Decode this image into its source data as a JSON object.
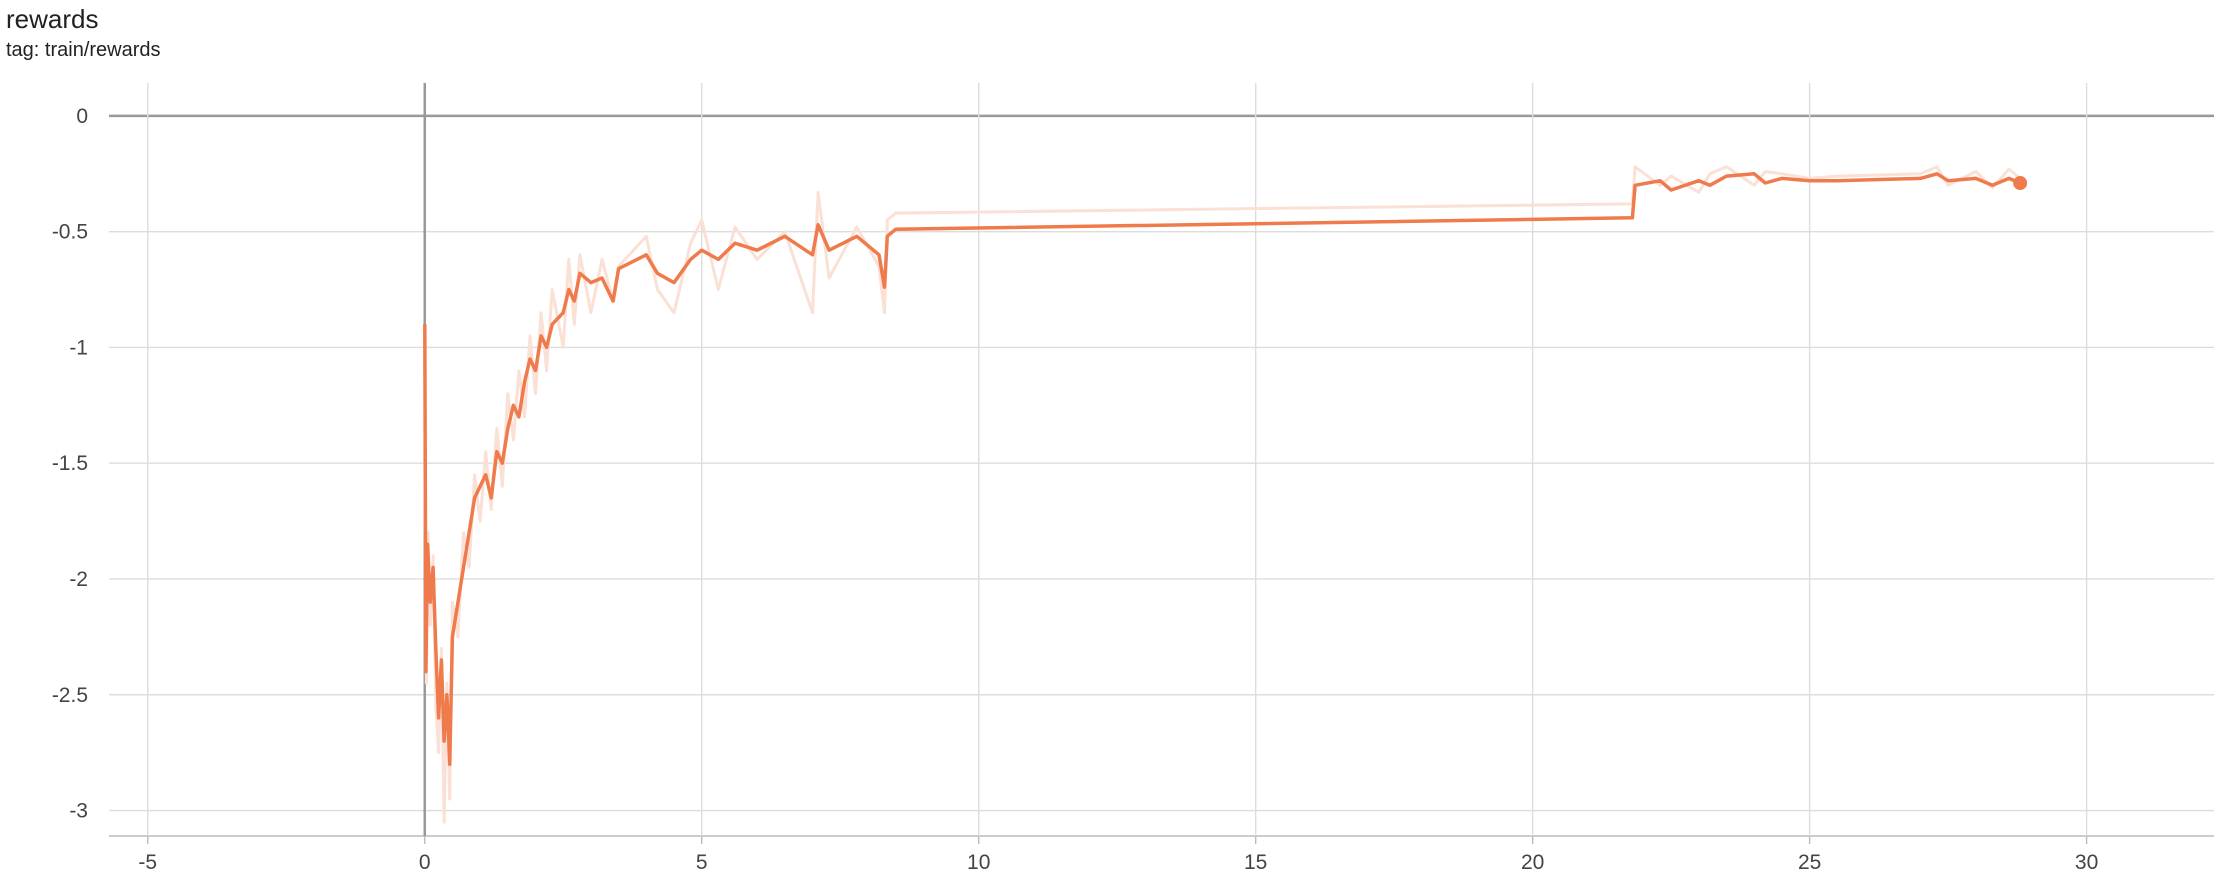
{
  "chart_data": {
    "type": "line",
    "title": "rewards",
    "subtitle": "tag: train/rewards",
    "xlim": [
      -5.7,
      32.3
    ],
    "ylim": [
      0.142,
      -3.11
    ],
    "xticks": [
      -5,
      0,
      5,
      10,
      15,
      20,
      25,
      30
    ],
    "yticks": [
      0,
      -0.5,
      -1,
      -1.5,
      -2,
      -2.5,
      -3
    ],
    "grid": true,
    "series": [
      {
        "color": "#fbe0d5",
        "x": [
          0,
          0.03,
          0.06,
          0.1,
          0.15,
          0.2,
          0.25,
          0.3,
          0.35,
          0.4,
          0.45,
          0.5,
          0.6,
          0.7,
          0.8,
          0.9,
          1.0,
          1.1,
          1.2,
          1.3,
          1.4,
          1.5,
          1.6,
          1.7,
          1.8,
          1.9,
          2.0,
          2.1,
          2.2,
          2.3,
          2.5,
          2.6,
          2.7,
          2.8,
          3.0,
          3.2,
          3.4,
          3.5,
          4.0,
          4.2,
          4.5,
          4.8,
          5.0,
          5.3,
          5.6,
          6.0,
          6.5,
          7.0,
          7.1,
          7.3,
          7.8,
          8.2,
          8.3,
          8.35,
          8.5,
          21.8,
          21.85,
          22.3,
          22.5,
          23.0,
          23.2,
          23.5,
          24.0,
          24.2,
          24.5,
          25.0,
          25.5,
          27.0,
          27.3,
          27.5,
          28.0,
          28.3,
          28.6,
          28.8
        ],
        "values": [
          -1.45,
          -2.45,
          -1.8,
          -2.2,
          -1.9,
          -2.55,
          -2.75,
          -2.3,
          -3.05,
          -2.45,
          -2.95,
          -2.1,
          -2.25,
          -1.8,
          -1.95,
          -1.55,
          -1.75,
          -1.45,
          -1.7,
          -1.35,
          -1.6,
          -1.2,
          -1.4,
          -1.1,
          -1.3,
          -0.95,
          -1.2,
          -0.85,
          -1.1,
          -0.75,
          -1.0,
          -0.62,
          -0.9,
          -0.6,
          -0.85,
          -0.62,
          -0.8,
          -0.65,
          -0.52,
          -0.75,
          -0.85,
          -0.55,
          -0.45,
          -0.75,
          -0.48,
          -0.62,
          -0.5,
          -0.85,
          -0.33,
          -0.7,
          -0.48,
          -0.65,
          -0.85,
          -0.45,
          -0.42,
          -0.38,
          -0.22,
          -0.3,
          -0.26,
          -0.33,
          -0.25,
          -0.22,
          -0.3,
          -0.24,
          -0.25,
          -0.27,
          -0.26,
          -0.25,
          -0.22,
          -0.3,
          -0.24,
          -0.31,
          -0.23,
          -0.27
        ]
      },
      {
        "color": "#ef7b4d",
        "x": [
          0,
          0.02,
          0.05,
          0.1,
          0.15,
          0.2,
          0.25,
          0.3,
          0.35,
          0.4,
          0.45,
          0.5,
          0.6,
          0.7,
          0.8,
          0.9,
          1.0,
          1.1,
          1.2,
          1.3,
          1.4,
          1.5,
          1.6,
          1.7,
          1.8,
          1.9,
          2.0,
          2.1,
          2.2,
          2.3,
          2.5,
          2.6,
          2.7,
          2.8,
          3.0,
          3.2,
          3.4,
          3.5,
          4.0,
          4.2,
          4.5,
          4.8,
          5.0,
          5.3,
          5.6,
          6.0,
          6.5,
          7.0,
          7.1,
          7.3,
          7.8,
          8.2,
          8.3,
          8.35,
          8.5,
          21.8,
          21.85,
          22.3,
          22.5,
          23.0,
          23.2,
          23.5,
          24.0,
          24.2,
          24.5,
          25.0,
          25.5,
          27.0,
          27.3,
          27.5,
          28.0,
          28.3,
          28.6,
          28.8
        ],
        "values": [
          -0.9,
          -2.4,
          -1.85,
          -2.1,
          -1.95,
          -2.3,
          -2.6,
          -2.35,
          -2.7,
          -2.5,
          -2.8,
          -2.25,
          -2.1,
          -1.95,
          -1.8,
          -1.65,
          -1.6,
          -1.55,
          -1.65,
          -1.45,
          -1.5,
          -1.35,
          -1.25,
          -1.3,
          -1.15,
          -1.05,
          -1.1,
          -0.95,
          -1.0,
          -0.9,
          -0.85,
          -0.75,
          -0.8,
          -0.68,
          -0.72,
          -0.7,
          -0.8,
          -0.66,
          -0.6,
          -0.68,
          -0.72,
          -0.62,
          -0.58,
          -0.62,
          -0.55,
          -0.58,
          -0.52,
          -0.6,
          -0.47,
          -0.58,
          -0.52,
          -0.6,
          -0.74,
          -0.52,
          -0.49,
          -0.44,
          -0.3,
          -0.28,
          -0.32,
          -0.28,
          -0.3,
          -0.26,
          -0.25,
          -0.29,
          -0.27,
          -0.28,
          -0.28,
          -0.27,
          -0.25,
          -0.28,
          -0.27,
          -0.3,
          -0.27,
          -0.29
        ]
      }
    ]
  }
}
